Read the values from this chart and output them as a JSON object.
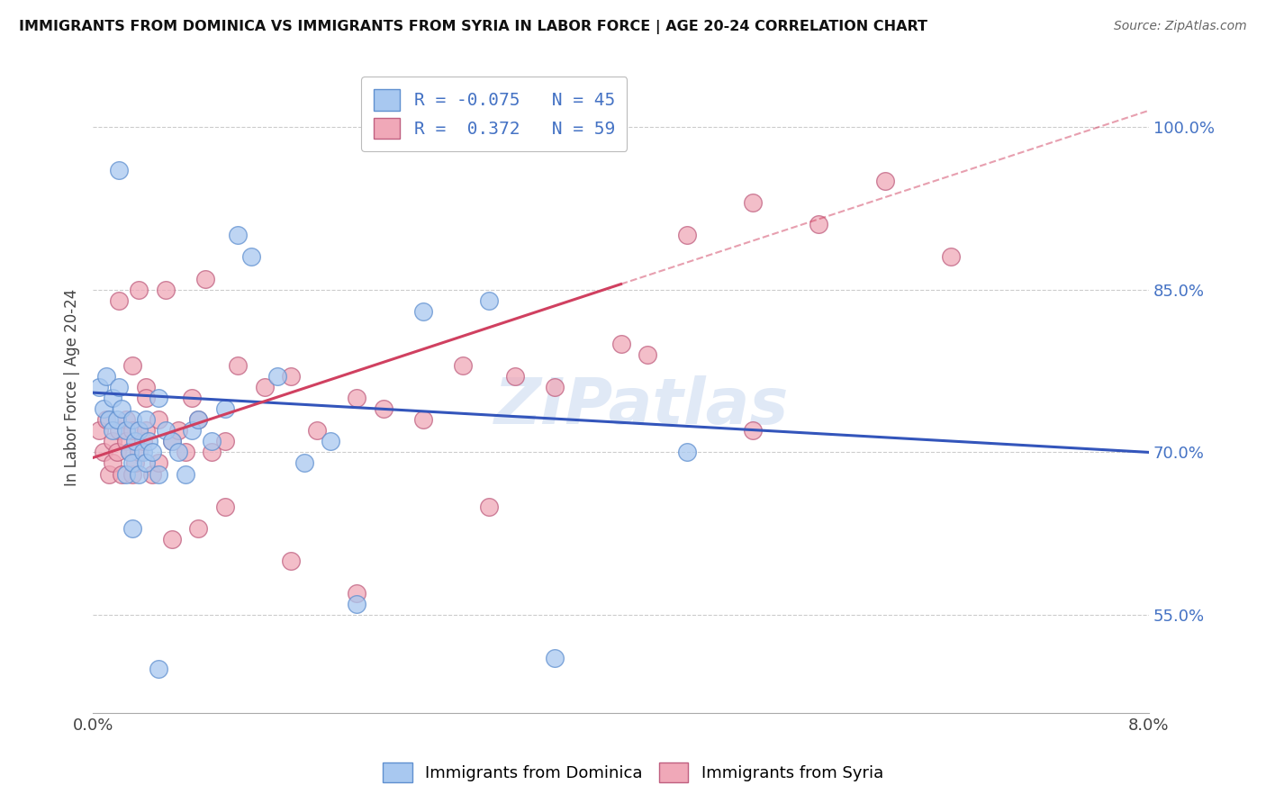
{
  "title": "IMMIGRANTS FROM DOMINICA VS IMMIGRANTS FROM SYRIA IN LABOR FORCE | AGE 20-24 CORRELATION CHART",
  "source": "Source: ZipAtlas.com",
  "ylabel": "In Labor Force | Age 20-24",
  "y_ticks": [
    55.0,
    70.0,
    85.0,
    100.0
  ],
  "x_range": [
    0.0,
    8.0
  ],
  "y_range": [
    46.0,
    106.0
  ],
  "R_dominica": -0.075,
  "N_dominica": 45,
  "R_syria": 0.372,
  "N_syria": 59,
  "color_dominica": "#a8c8f0",
  "color_syria": "#f0a8b8",
  "color_dominica_line": "#3355bb",
  "color_syria_line": "#d04060",
  "color_dominica_edge": "#6090d0",
  "color_syria_edge": "#c06080",
  "watermark": "ZIPatlas",
  "dom_line_x0": 0.0,
  "dom_line_y0": 75.5,
  "dom_line_x1": 8.0,
  "dom_line_y1": 70.0,
  "syr_line_x0": 0.0,
  "syr_line_y0": 69.5,
  "syr_line_x1": 4.0,
  "syr_line_y1": 85.5,
  "syr_dash_x0": 4.0,
  "syr_dash_y0": 85.5,
  "syr_dash_x1": 8.0,
  "syr_dash_y1": 101.5,
  "dominica_x": [
    0.05,
    0.08,
    0.1,
    0.12,
    0.15,
    0.15,
    0.18,
    0.2,
    0.22,
    0.25,
    0.25,
    0.28,
    0.3,
    0.3,
    0.32,
    0.35,
    0.35,
    0.38,
    0.4,
    0.4,
    0.42,
    0.45,
    0.5,
    0.5,
    0.55,
    0.6,
    0.65,
    0.7,
    0.75,
    0.8,
    0.9,
    1.0,
    1.1,
    1.2,
    1.4,
    1.6,
    1.8,
    2.0,
    2.5,
    3.0,
    3.5,
    4.5,
    0.2,
    0.3,
    0.5
  ],
  "dominica_y": [
    76.0,
    74.0,
    77.0,
    73.0,
    72.0,
    75.0,
    73.0,
    76.0,
    74.0,
    72.0,
    68.0,
    70.0,
    73.0,
    69.0,
    71.0,
    72.0,
    68.0,
    70.0,
    73.0,
    69.0,
    71.0,
    70.0,
    75.0,
    68.0,
    72.0,
    71.0,
    70.0,
    68.0,
    72.0,
    73.0,
    71.0,
    74.0,
    90.0,
    88.0,
    77.0,
    69.0,
    71.0,
    56.0,
    83.0,
    84.0,
    51.0,
    70.0,
    96.0,
    63.0,
    50.0
  ],
  "syria_x": [
    0.05,
    0.08,
    0.1,
    0.12,
    0.15,
    0.15,
    0.18,
    0.2,
    0.22,
    0.25,
    0.25,
    0.28,
    0.3,
    0.3,
    0.32,
    0.35,
    0.35,
    0.38,
    0.4,
    0.4,
    0.45,
    0.5,
    0.5,
    0.55,
    0.6,
    0.65,
    0.7,
    0.75,
    0.8,
    0.85,
    0.9,
    1.0,
    1.1,
    1.3,
    1.5,
    1.7,
    2.0,
    2.2,
    2.5,
    2.8,
    3.2,
    3.5,
    4.0,
    4.2,
    5.0,
    5.5,
    6.0,
    0.2,
    0.3,
    0.4,
    0.6,
    0.8,
    1.0,
    1.5,
    2.0,
    3.0,
    4.5,
    5.0,
    6.5
  ],
  "syria_y": [
    72.0,
    70.0,
    73.0,
    68.0,
    69.0,
    71.0,
    70.0,
    72.0,
    68.0,
    71.0,
    73.0,
    70.0,
    72.0,
    68.0,
    69.0,
    85.0,
    70.0,
    71.0,
    72.0,
    76.0,
    68.0,
    73.0,
    69.0,
    85.0,
    71.0,
    72.0,
    70.0,
    75.0,
    73.0,
    86.0,
    70.0,
    71.0,
    78.0,
    76.0,
    77.0,
    72.0,
    75.0,
    74.0,
    73.0,
    78.0,
    77.0,
    76.0,
    80.0,
    79.0,
    72.0,
    91.0,
    95.0,
    84.0,
    78.0,
    75.0,
    62.0,
    63.0,
    65.0,
    60.0,
    57.0,
    65.0,
    90.0,
    93.0,
    88.0
  ]
}
